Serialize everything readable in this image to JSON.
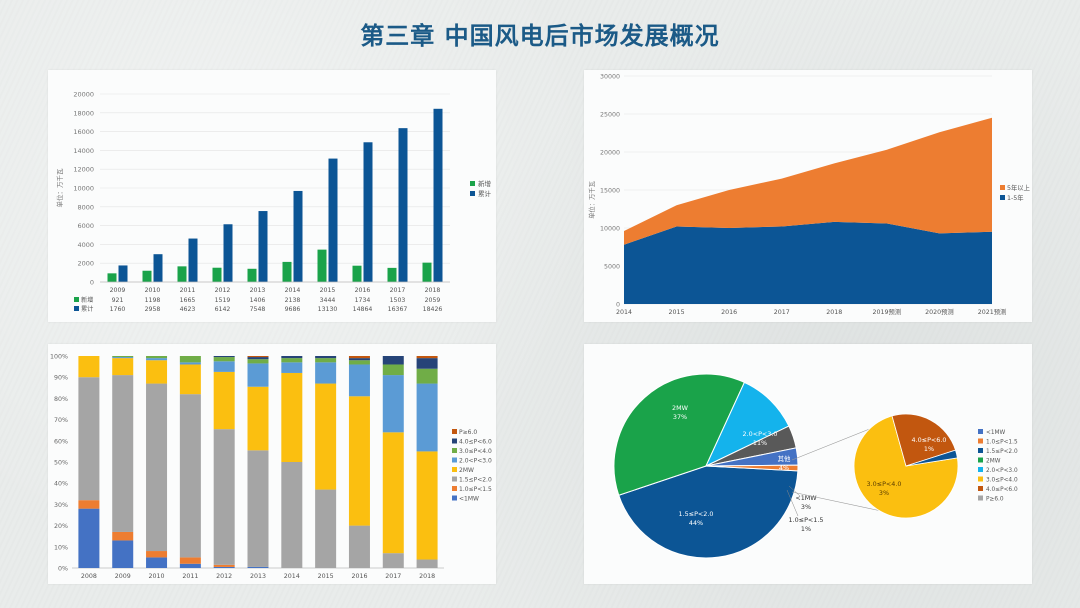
{
  "title": "第三章  中国风电后市场发展概况",
  "colors": {
    "green": "#1aa34a",
    "darkblue": "#0c5595",
    "orange": "#ed7d31",
    "gray": "#a5a5a5",
    "yellow": "#fbbf10",
    "lightblue": "#5b9bd5",
    "medblue": "#4472c4",
    "olive": "#70ad47",
    "navy": "#264478",
    "cyan": "#14b3ec",
    "darkgray": "#595959",
    "brown": "#c2570f",
    "title": "#1b5a87"
  },
  "chart_data": [
    {
      "type": "bar",
      "ylabel": "单位：万千瓦",
      "yticks": [
        "0",
        "2000",
        "4000",
        "6000",
        "8000",
        "10000",
        "12000",
        "14000",
        "16000",
        "18000",
        "20000"
      ],
      "ylim": [
        0,
        20000
      ],
      "categories": [
        "2009",
        "2010",
        "2011",
        "2012",
        "2013",
        "2014",
        "2015",
        "2016",
        "2017",
        "2018"
      ],
      "series": [
        {
          "name": "新增",
          "table_label": "新增",
          "color": "green",
          "values": [
            921,
            1198,
            1665,
            1519,
            1406,
            2138,
            3444,
            1734,
            1503,
            2059
          ],
          "labels": [
            "921",
            "1198",
            "1665",
            "1519",
            "1406",
            "2138",
            "3444",
            "1734",
            "1503",
            "2059"
          ]
        },
        {
          "name": "累计",
          "table_label": "累计",
          "color": "darkblue",
          "values": [
            1760,
            2958,
            4623,
            6142,
            7548,
            9686,
            13130,
            14864,
            16367,
            18426
          ],
          "labels": [
            "1760",
            "2958",
            "4623",
            "6142",
            "7548",
            "9686",
            "13130",
            "14864",
            "16367",
            "18426"
          ]
        }
      ],
      "legend": "right",
      "grid": true
    },
    {
      "type": "area",
      "ylabel": "单位：万千瓦",
      "yticks": [
        "0",
        "5000",
        "10000",
        "15000",
        "20000",
        "25000",
        "30000"
      ],
      "ylim": [
        0,
        30000
      ],
      "categories": [
        "2014",
        "2015",
        "2016",
        "2017",
        "2018",
        "2019预测",
        "2020预测",
        "2021预测"
      ],
      "series": [
        {
          "name": "1-5年",
          "color": "darkblue",
          "values": [
            7800,
            10200,
            10000,
            10200,
            10800,
            10600,
            9300,
            9500
          ]
        },
        {
          "name": "5年以上",
          "color": "orange",
          "values": [
            1800,
            2800,
            5000,
            6300,
            7700,
            9700,
            13300,
            15000
          ]
        }
      ],
      "legend": "right",
      "grid": true
    },
    {
      "type": "bar",
      "stacked": true,
      "normalized": true,
      "yticks": [
        "0%",
        "10%",
        "20%",
        "30%",
        "40%",
        "50%",
        "60%",
        "70%",
        "80%",
        "90%",
        "100%"
      ],
      "categories": [
        "2008",
        "2009",
        "2010",
        "2011",
        "2012",
        "2013",
        "2014",
        "2015",
        "2016",
        "2017",
        "2018"
      ],
      "series": [
        {
          "name": "<1MW",
          "color": "medblue",
          "values": [
            28,
            13,
            5,
            2,
            0.5,
            0.5,
            0,
            0,
            0,
            0,
            0
          ]
        },
        {
          "name": "1.0≤P<1.5",
          "color": "orange",
          "values": [
            4,
            4,
            3,
            3,
            1,
            0,
            0,
            0,
            0,
            0,
            0
          ]
        },
        {
          "name": "1.5≤P<2.0",
          "color": "gray",
          "values": [
            58,
            74,
            79,
            77,
            64,
            55,
            50,
            37,
            20,
            7,
            4
          ]
        },
        {
          "name": "2MW",
          "color": "yellow",
          "values": [
            10,
            8,
            11,
            14,
            27,
            30,
            42,
            50,
            61,
            57,
            51
          ]
        },
        {
          "name": "2.0<P<3.0",
          "color": "lightblue",
          "values": [
            0,
            0.5,
            1,
            1,
            5,
            11,
            5,
            10,
            15,
            27,
            32
          ]
        },
        {
          "name": "3.0≤P<4.0",
          "color": "olive",
          "values": [
            0,
            0.5,
            1,
            3,
            2,
            2,
            2,
            2,
            2,
            5,
            7
          ]
        },
        {
          "name": "4.0≤P<6.0",
          "color": "navy",
          "values": [
            0,
            0,
            0,
            0,
            0.5,
            1,
            1,
            1,
            1,
            4,
            5
          ]
        },
        {
          "name": "P≥6.0",
          "color": "brown",
          "values": [
            0,
            0,
            0,
            0,
            0,
            0.5,
            0,
            0,
            1,
            0,
            1
          ]
        }
      ],
      "legend": "right"
    },
    {
      "type": "pie",
      "slices": [
        {
          "name": "1.5≤P<2.0",
          "value": 44,
          "label": "1.5≤P<2.0",
          "pct": "44%",
          "color": "darkblue"
        },
        {
          "name": "2MW",
          "value": 37,
          "label": "2MW",
          "pct": "37%",
          "color": "green"
        },
        {
          "name": "2.0<P<3.0",
          "value": 11,
          "label": "2.0<P<3.0",
          "pct": "11%",
          "color": "cyan"
        },
        {
          "name": "其他",
          "value": 4,
          "label": "其他",
          "pct": "4%",
          "color": "darkgray"
        },
        {
          "name": "<1MW",
          "value": 3,
          "label": "<1MW",
          "pct": "3%",
          "color": "medblue"
        },
        {
          "name": "1.0≤P<1.5",
          "value": 1,
          "label": "1.0≤P<1.5",
          "pct": "1%",
          "color": "orange"
        }
      ],
      "sub_slices": [
        {
          "name": "3.0≤P<4.0",
          "value": 3,
          "label": "3.0≤P<4.0",
          "pct": "3%",
          "color": "yellow"
        },
        {
          "name": "4.0≤P<6.0",
          "value": 1,
          "label": "4.0≤P<6.0",
          "pct": "1%",
          "color": "brown"
        },
        {
          "name": "P≥6.0",
          "value": 0.1,
          "color": "darkblue"
        }
      ],
      "legend": [
        {
          "name": "<1MW",
          "color": "medblue"
        },
        {
          "name": "1.0≤P<1.5",
          "color": "orange"
        },
        {
          "name": "1.5≤P<2.0",
          "color": "darkblue"
        },
        {
          "name": "2MW",
          "color": "green"
        },
        {
          "name": "2.0<P<3.0",
          "color": "cyan"
        },
        {
          "name": "3.0≤P<4.0",
          "color": "yellow"
        },
        {
          "name": "4.0≤P<6.0",
          "color": "brown"
        },
        {
          "name": "P≥6.0",
          "color": "gray"
        }
      ]
    }
  ]
}
